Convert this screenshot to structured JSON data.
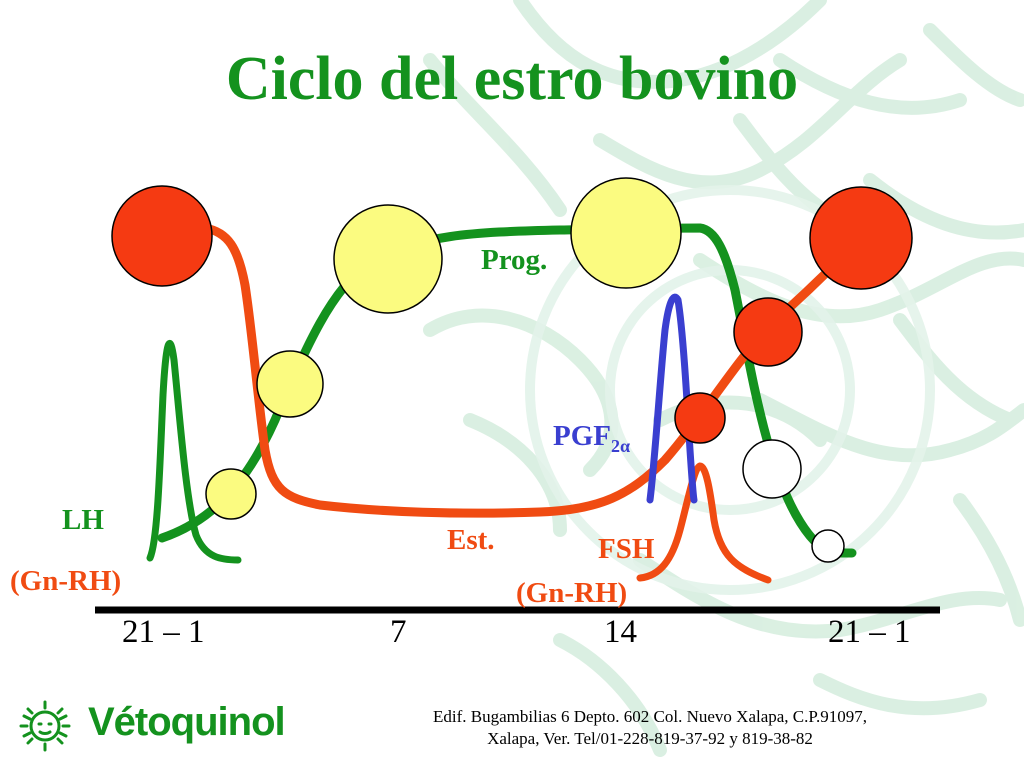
{
  "title": "Ciclo del estro bovino",
  "labels": {
    "prog": "Prog.",
    "pgf": "PGF",
    "pgf_sub": "2α",
    "lh": "LH",
    "lh_gnrh": "(Gn-RH)",
    "est": "Est.",
    "fsh": "FSH",
    "fsh_gnrh": "(Gn-RH)"
  },
  "axis_ticks": [
    "21 – 1",
    "7",
    "14",
    "21 – 1"
  ],
  "footer": {
    "line1": "Edif. Bugambilias 6 Depto. 602 Col. Nuevo Xalapa, C.P.91097,",
    "line2": "Xalapa, Ver. Tel/01-228-819-37-92 y 819-38-82"
  },
  "logo": {
    "text": "Vétoquinol"
  },
  "colors": {
    "green": "#14921e",
    "orange_red": "#f04b12",
    "blue": "#3a3fd0",
    "yellow": "#fbfb80",
    "red": "#f53a12",
    "watermark": "#d5ecdf"
  }
}
